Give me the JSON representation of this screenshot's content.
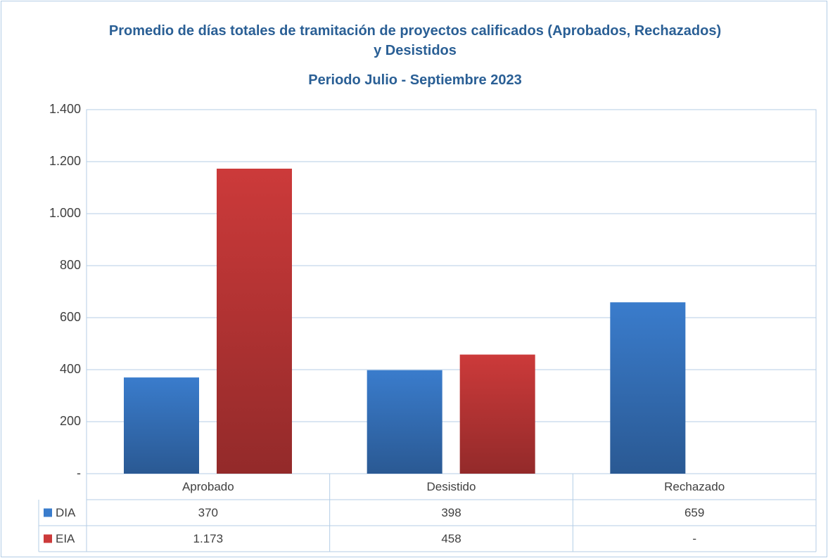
{
  "chart_data": {
    "type": "bar",
    "title": "Promedio de días totales de tramitación de proyectos calificados (Aprobados, Rechazados) y Desistidos",
    "subtitle": "Periodo Julio - Septiembre 2023",
    "categories": [
      "Aprobado",
      "Desistido",
      "Rechazado"
    ],
    "series": [
      {
        "name": "DIA",
        "color": "#3a7ccc",
        "values": [
          370,
          398,
          659
        ]
      },
      {
        "name": "EIA",
        "color": "#cc3a3a",
        "values": [
          1173,
          458,
          0
        ],
        "value_labels": [
          "1.173",
          "458",
          "-"
        ]
      }
    ],
    "ylim": [
      0,
      1400
    ],
    "yticks": [
      {
        "value": 0,
        "label": "-"
      },
      200,
      400,
      600,
      800,
      {
        "value": 1000,
        "label": "1.000"
      },
      {
        "value": 1200,
        "label": "1.200"
      },
      {
        "value": 1400,
        "label": "1.400"
      }
    ],
    "grid": true,
    "data_table": true
  }
}
